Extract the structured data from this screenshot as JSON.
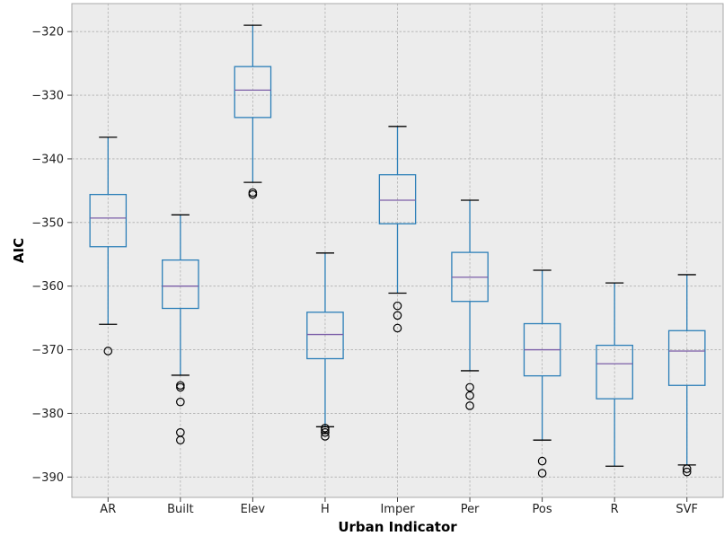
{
  "chart_data": {
    "type": "box",
    "title": "",
    "xlabel": "Urban Indicator",
    "ylabel": "AIC",
    "ylim": [
      -393.2,
      -315.6
    ],
    "yticks": [
      -320,
      -330,
      -340,
      -350,
      -360,
      -370,
      -380,
      -390
    ],
    "grid": true,
    "colors": {
      "background": "#ececec",
      "grid": "#b0b0b0",
      "box": "#2c7fb8",
      "median": "#7b5ea7",
      "whisker_cap": "#000000",
      "outlier": "#000000"
    },
    "categories": [
      "AR",
      "Built",
      "Elev",
      "H",
      "Imper",
      "Per",
      "Pos",
      "R",
      "SVF"
    ],
    "boxes": [
      {
        "label": "AR",
        "whislo": -366.0,
        "q1": -353.8,
        "median": -349.3,
        "q3": -345.6,
        "whishi": -336.6,
        "fliers": [
          -370.2
        ]
      },
      {
        "label": "Built",
        "whislo": -374.0,
        "q1": -363.5,
        "median": -360.0,
        "q3": -355.9,
        "whishi": -348.8,
        "fliers": [
          -375.6,
          -375.9,
          -378.2,
          -383.0,
          -384.2
        ]
      },
      {
        "label": "Elev",
        "whislo": -343.7,
        "q1": -333.5,
        "median": -329.2,
        "q3": -325.5,
        "whishi": -319.0,
        "fliers": [
          -345.3,
          -345.6
        ]
      },
      {
        "label": "H",
        "whislo": -382.1,
        "q1": -371.4,
        "median": -367.6,
        "q3": -364.1,
        "whishi": -354.8,
        "fliers": [
          -382.3,
          -382.6,
          -383.0,
          -383.6
        ]
      },
      {
        "label": "Imper",
        "whislo": -361.1,
        "q1": -350.2,
        "median": -346.5,
        "q3": -342.5,
        "whishi": -334.9,
        "fliers": [
          -363.1,
          -364.6,
          -366.6
        ]
      },
      {
        "label": "Per",
        "whislo": -373.3,
        "q1": -362.4,
        "median": -358.6,
        "q3": -354.7,
        "whishi": -346.5,
        "fliers": [
          -375.9,
          -377.2,
          -378.8
        ]
      },
      {
        "label": "Pos",
        "whislo": -384.2,
        "q1": -374.1,
        "median": -370.0,
        "q3": -365.9,
        "whishi": -357.5,
        "fliers": [
          -387.5,
          -389.4
        ]
      },
      {
        "label": "R",
        "whislo": -388.3,
        "q1": -377.7,
        "median": -372.2,
        "q3": -369.3,
        "whishi": -359.5,
        "fliers": []
      },
      {
        "label": "SVF",
        "whislo": -388.1,
        "q1": -375.6,
        "median": -370.2,
        "q3": -367.0,
        "whishi": -358.2,
        "fliers": [
          -388.7,
          -389.2
        ]
      }
    ]
  }
}
